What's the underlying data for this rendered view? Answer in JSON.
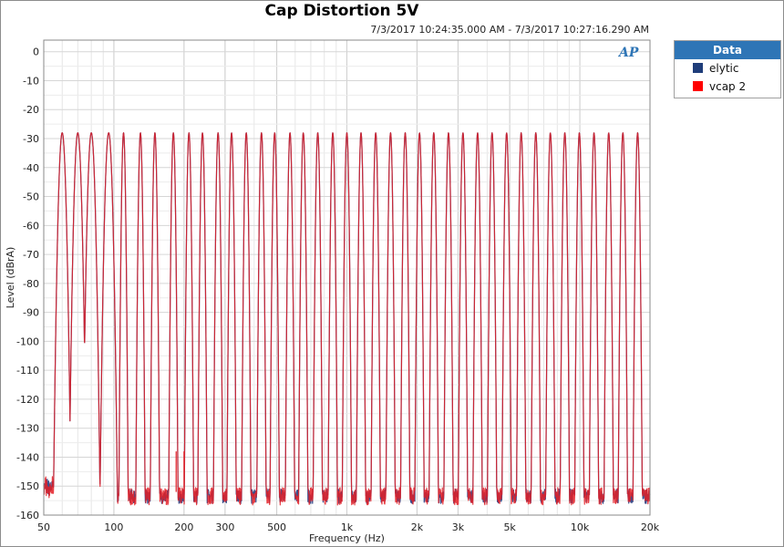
{
  "chart_data": {
    "type": "line",
    "title": "Cap Distortion 5V",
    "subtitle": "7/3/2017 10:24:35.000 AM - 7/3/2017 10:27:16.290 AM",
    "xlabel": "Frequency (Hz)",
    "ylabel": "Level (dBrA)",
    "x_scale": "log",
    "xlim": [
      50,
      20000
    ],
    "ylim": [
      -160,
      4
    ],
    "x_ticks": [
      {
        "value": 50,
        "label": "50"
      },
      {
        "value": 100,
        "label": "100"
      },
      {
        "value": 200,
        "label": "200"
      },
      {
        "value": 300,
        "label": "300"
      },
      {
        "value": 500,
        "label": "500"
      },
      {
        "value": 1000,
        "label": "1k"
      },
      {
        "value": 2000,
        "label": "2k"
      },
      {
        "value": 3000,
        "label": "3k"
      },
      {
        "value": 5000,
        "label": "5k"
      },
      {
        "value": 10000,
        "label": "10k"
      },
      {
        "value": 20000,
        "label": "20k"
      }
    ],
    "y_ticks": [
      0,
      -10,
      -20,
      -30,
      -40,
      -50,
      -60,
      -70,
      -80,
      -90,
      -100,
      -110,
      -120,
      -130,
      -140,
      -150,
      -160
    ],
    "grid": true,
    "legend_title": "Data",
    "legend_placement": "right",
    "tone_level_dbra": -28,
    "noise_floor_dbra": -152,
    "tone_frequencies_hz": [
      60,
      70,
      80,
      95,
      110,
      130,
      150,
      180,
      210,
      240,
      280,
      320,
      370,
      430,
      490,
      570,
      650,
      750,
      870,
      1000,
      1150,
      1330,
      1540,
      1780,
      2050,
      2360,
      2730,
      3150,
      3640,
      4200,
      4850,
      5600,
      6470,
      7470,
      8620,
      9950,
      11500,
      13300,
      15300,
      17700
    ],
    "series": [
      {
        "name": "elytic",
        "color": "#3b4f8c"
      },
      {
        "name": "vcap 2",
        "color": "#e41e26"
      }
    ]
  },
  "logo_text": "AP",
  "legend_swatches": {
    "elytic": "#1f3d7a",
    "vcap 2": "#ff0000"
  }
}
